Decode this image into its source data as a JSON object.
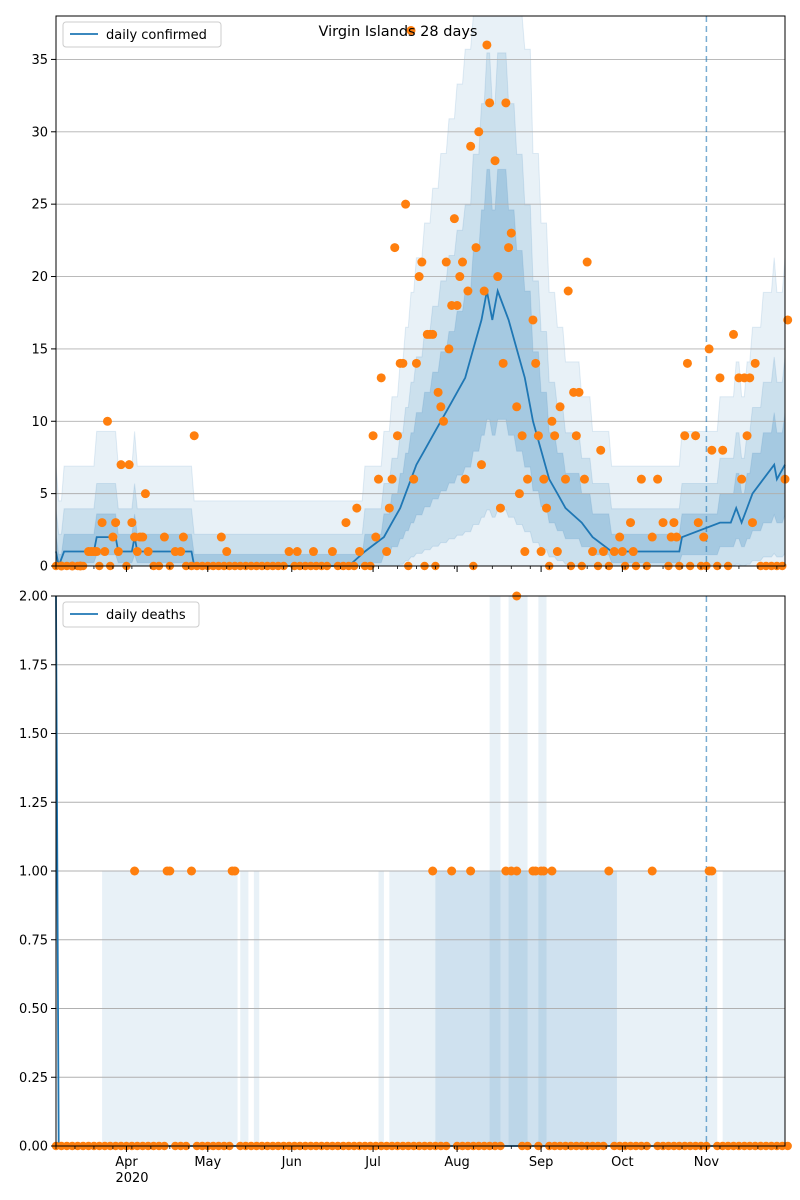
{
  "figure": {
    "title": "Virgin Islands 28 days"
  },
  "chart_data": [
    {
      "type": "line",
      "panel": "top",
      "title": "Virgin Islands 28 days",
      "xlabel": "",
      "ylabel": "",
      "x_range": [
        "2020-03-06",
        "2020-11-30"
      ],
      "ylim": [
        0,
        38
      ],
      "y_ticks": [
        0,
        5,
        10,
        15,
        20,
        25,
        30,
        35
      ],
      "y_tick_labels": [
        "0",
        "5",
        "10",
        "15",
        "20",
        "25",
        "30",
        "35"
      ],
      "grid": "horizontal",
      "legend": {
        "position": "top-left",
        "entries": [
          "daily confirmed"
        ]
      },
      "marker_date": "2020-11-01",
      "colors": {
        "line": "#1f77b4",
        "points": "#ff7f0e",
        "band": "#1f77b4",
        "marker": "#1f77b4"
      },
      "series": [
        {
          "name": "daily confirmed",
          "kind": "line",
          "points": [
            [
              "2020-03-06",
              1
            ],
            [
              "2020-03-07",
              0
            ],
            [
              "2020-03-09",
              1
            ],
            [
              "2020-03-20",
              1
            ],
            [
              "2020-03-21",
              2
            ],
            [
              "2020-03-28",
              2
            ],
            [
              "2020-03-29",
              1
            ],
            [
              "2020-04-03",
              1
            ],
            [
              "2020-04-04",
              2
            ],
            [
              "2020-04-05",
              1
            ],
            [
              "2020-04-25",
              1
            ],
            [
              "2020-04-26",
              0
            ],
            [
              "2020-06-22",
              0
            ],
            [
              "2020-06-28",
              1
            ],
            [
              "2020-07-05",
              2
            ],
            [
              "2020-07-08",
              3
            ],
            [
              "2020-07-11",
              4
            ],
            [
              "2020-07-13",
              5
            ],
            [
              "2020-07-15",
              6
            ],
            [
              "2020-07-17",
              7
            ],
            [
              "2020-07-20",
              8
            ],
            [
              "2020-07-23",
              9
            ],
            [
              "2020-07-26",
              10
            ],
            [
              "2020-07-29",
              11
            ],
            [
              "2020-08-01",
              12
            ],
            [
              "2020-08-04",
              13
            ],
            [
              "2020-08-07",
              15
            ],
            [
              "2020-08-10",
              17
            ],
            [
              "2020-08-12",
              19
            ],
            [
              "2020-08-14",
              17
            ],
            [
              "2020-08-16",
              19
            ],
            [
              "2020-08-20",
              17
            ],
            [
              "2020-08-23",
              15
            ],
            [
              "2020-08-26",
              13
            ],
            [
              "2020-08-29",
              10
            ],
            [
              "2020-09-01",
              8
            ],
            [
              "2020-09-04",
              6
            ],
            [
              "2020-09-07",
              5
            ],
            [
              "2020-09-10",
              4
            ],
            [
              "2020-09-16",
              3
            ],
            [
              "2020-09-20",
              2
            ],
            [
              "2020-09-27",
              1
            ],
            [
              "2020-10-22",
              1
            ],
            [
              "2020-10-23",
              2
            ],
            [
              "2020-11-06",
              3
            ],
            [
              "2020-11-10",
              3
            ],
            [
              "2020-11-12",
              4
            ],
            [
              "2020-11-14",
              3
            ],
            [
              "2020-11-16",
              4
            ],
            [
              "2020-11-18",
              5
            ],
            [
              "2020-11-22",
              6
            ],
            [
              "2020-11-26",
              7
            ],
            [
              "2020-11-27",
              6
            ],
            [
              "2020-11-30",
              7
            ]
          ]
        },
        {
          "name": "",
          "kind": "points",
          "points": [
            [
              "2020-03-08",
              0
            ],
            [
              "2020-03-12",
              0
            ],
            [
              "2020-03-15",
              0
            ],
            [
              "2020-03-18",
              1
            ],
            [
              "2020-03-19",
              1
            ],
            [
              "2020-03-20",
              1
            ],
            [
              "2020-03-21",
              1
            ],
            [
              "2020-03-23",
              3
            ],
            [
              "2020-03-24",
              1
            ],
            [
              "2020-03-25",
              10
            ],
            [
              "2020-03-27",
              2
            ],
            [
              "2020-03-28",
              3
            ],
            [
              "2020-03-29",
              1
            ],
            [
              "2020-03-30",
              7
            ],
            [
              "2020-04-02",
              7
            ],
            [
              "2020-04-03",
              3
            ],
            [
              "2020-04-04",
              2
            ],
            [
              "2020-04-05",
              1
            ],
            [
              "2020-04-06",
              2
            ],
            [
              "2020-04-07",
              2
            ],
            [
              "2020-04-08",
              5
            ],
            [
              "2020-04-09",
              1
            ],
            [
              "2020-04-15",
              2
            ],
            [
              "2020-04-19",
              1
            ],
            [
              "2020-04-21",
              1
            ],
            [
              "2020-04-22",
              2
            ],
            [
              "2020-04-26",
              9
            ],
            [
              "2020-05-06",
              2
            ],
            [
              "2020-05-08",
              1
            ],
            [
              "2020-05-31",
              1
            ],
            [
              "2020-06-03",
              1
            ],
            [
              "2020-06-09",
              1
            ],
            [
              "2020-06-16",
              1
            ],
            [
              "2020-06-21",
              3
            ],
            [
              "2020-06-25",
              4
            ],
            [
              "2020-06-26",
              1
            ],
            [
              "2020-07-01",
              9
            ],
            [
              "2020-07-02",
              2
            ],
            [
              "2020-07-03",
              6
            ],
            [
              "2020-07-04",
              13
            ],
            [
              "2020-07-06",
              1
            ],
            [
              "2020-07-07",
              4
            ],
            [
              "2020-07-08",
              6
            ],
            [
              "2020-07-09",
              22
            ],
            [
              "2020-07-10",
              9
            ],
            [
              "2020-07-11",
              14
            ],
            [
              "2020-07-12",
              14
            ],
            [
              "2020-07-13",
              25
            ],
            [
              "2020-07-15",
              37
            ],
            [
              "2020-07-16",
              6
            ],
            [
              "2020-07-17",
              14
            ],
            [
              "2020-07-18",
              20
            ],
            [
              "2020-07-19",
              21
            ],
            [
              "2020-07-21",
              16
            ],
            [
              "2020-07-22",
              16
            ],
            [
              "2020-07-23",
              16
            ],
            [
              "2020-07-25",
              12
            ],
            [
              "2020-07-26",
              11
            ],
            [
              "2020-07-27",
              10
            ],
            [
              "2020-07-28",
              21
            ],
            [
              "2020-07-29",
              15
            ],
            [
              "2020-07-30",
              18
            ],
            [
              "2020-07-31",
              24
            ],
            [
              "2020-08-01",
              18
            ],
            [
              "2020-08-02",
              20
            ],
            [
              "2020-08-03",
              21
            ],
            [
              "2020-08-04",
              6
            ],
            [
              "2020-08-05",
              19
            ],
            [
              "2020-08-06",
              29
            ],
            [
              "2020-08-08",
              22
            ],
            [
              "2020-08-09",
              30
            ],
            [
              "2020-08-10",
              7
            ],
            [
              "2020-08-11",
              19
            ],
            [
              "2020-08-12",
              36
            ],
            [
              "2020-08-13",
              32
            ],
            [
              "2020-08-15",
              28
            ],
            [
              "2020-08-16",
              20
            ],
            [
              "2020-08-17",
              4
            ],
            [
              "2020-08-18",
              14
            ],
            [
              "2020-08-19",
              32
            ],
            [
              "2020-08-20",
              22
            ],
            [
              "2020-08-21",
              23
            ],
            [
              "2020-08-23",
              11
            ],
            [
              "2020-08-24",
              5
            ],
            [
              "2020-08-25",
              9
            ],
            [
              "2020-08-26",
              1
            ],
            [
              "2020-08-27",
              6
            ],
            [
              "2020-08-29",
              17
            ],
            [
              "2020-08-30",
              14
            ],
            [
              "2020-08-31",
              9
            ],
            [
              "2020-09-01",
              1
            ],
            [
              "2020-09-02",
              6
            ],
            [
              "2020-09-03",
              4
            ],
            [
              "2020-09-05",
              10
            ],
            [
              "2020-09-06",
              9
            ],
            [
              "2020-09-07",
              1
            ],
            [
              "2020-09-08",
              11
            ],
            [
              "2020-09-10",
              6
            ],
            [
              "2020-09-11",
              19
            ],
            [
              "2020-09-13",
              12
            ],
            [
              "2020-09-14",
              9
            ],
            [
              "2020-09-15",
              12
            ],
            [
              "2020-09-17",
              6
            ],
            [
              "2020-09-18",
              21
            ],
            [
              "2020-09-20",
              1
            ],
            [
              "2020-09-23",
              8
            ],
            [
              "2020-09-24",
              1
            ],
            [
              "2020-09-28",
              1
            ],
            [
              "2020-09-30",
              2
            ],
            [
              "2020-10-01",
              1
            ],
            [
              "2020-10-04",
              3
            ],
            [
              "2020-10-05",
              1
            ],
            [
              "2020-10-08",
              6
            ],
            [
              "2020-10-12",
              2
            ],
            [
              "2020-10-14",
              6
            ],
            [
              "2020-10-16",
              3
            ],
            [
              "2020-10-19",
              2
            ],
            [
              "2020-10-20",
              3
            ],
            [
              "2020-10-21",
              2
            ],
            [
              "2020-10-24",
              9
            ],
            [
              "2020-10-25",
              14
            ],
            [
              "2020-10-28",
              9
            ],
            [
              "2020-10-29",
              3
            ],
            [
              "2020-10-31",
              2
            ],
            [
              "2020-11-02",
              15
            ],
            [
              "2020-11-03",
              8
            ],
            [
              "2020-11-06",
              13
            ],
            [
              "2020-11-07",
              8
            ],
            [
              "2020-11-11",
              16
            ],
            [
              "2020-11-13",
              13
            ],
            [
              "2020-11-14",
              6
            ],
            [
              "2020-11-15",
              13
            ],
            [
              "2020-11-16",
              9
            ],
            [
              "2020-11-17",
              13
            ],
            [
              "2020-11-18",
              3
            ],
            [
              "2020-11-19",
              14
            ],
            [
              "2020-11-30",
              6
            ],
            [
              "2020-12-01",
              17
            ]
          ]
        }
      ]
    },
    {
      "type": "line",
      "panel": "bottom",
      "xlabel": "",
      "ylabel": "",
      "x_range": [
        "2020-03-06",
        "2020-11-30"
      ],
      "ylim": [
        0,
        2.0
      ],
      "y_ticks": [
        0,
        0.25,
        0.5,
        0.75,
        1.0,
        1.25,
        1.5,
        1.75,
        2.0
      ],
      "y_tick_labels": [
        "0.00",
        "0.25",
        "0.50",
        "0.75",
        "1.00",
        "1.25",
        "1.50",
        "1.75",
        "2.00"
      ],
      "x_ticks": [
        "2020-04-01",
        "2020-05-01",
        "2020-06-01",
        "2020-07-01",
        "2020-08-01",
        "2020-09-01",
        "2020-10-01",
        "2020-11-01"
      ],
      "x_tick_labels": [
        "Apr",
        "May",
        "Jun",
        "Jul",
        "Aug",
        "Sep",
        "Oct",
        "Nov"
      ],
      "x_year_label": "2020",
      "grid": "horizontal",
      "legend": {
        "position": "top-left",
        "entries": [
          "daily deaths"
        ]
      },
      "marker_date": "2020-11-01",
      "series": [
        {
          "name": "daily deaths",
          "kind": "line",
          "points": [
            [
              "2020-03-06",
              2.0
            ],
            [
              "2020-03-07",
              0
            ],
            [
              "2020-11-30",
              0
            ]
          ]
        },
        {
          "name": "",
          "kind": "points",
          "points": [
            [
              "2020-04-04",
              1
            ],
            [
              "2020-04-16",
              1
            ],
            [
              "2020-04-17",
              1
            ],
            [
              "2020-04-25",
              1
            ],
            [
              "2020-05-10",
              1
            ],
            [
              "2020-05-11",
              1
            ],
            [
              "2020-07-23",
              1
            ],
            [
              "2020-07-30",
              1
            ],
            [
              "2020-08-06",
              1
            ],
            [
              "2020-08-19",
              1
            ],
            [
              "2020-08-21",
              1
            ],
            [
              "2020-08-23",
              1
            ],
            [
              "2020-08-23",
              2
            ],
            [
              "2020-08-29",
              1
            ],
            [
              "2020-08-30",
              1
            ],
            [
              "2020-09-01",
              1
            ],
            [
              "2020-09-02",
              1
            ],
            [
              "2020-09-05",
              1
            ],
            [
              "2020-09-26",
              1
            ],
            [
              "2020-10-12",
              1
            ],
            [
              "2020-11-02",
              1
            ],
            [
              "2020-11-03",
              1
            ]
          ]
        }
      ]
    }
  ]
}
